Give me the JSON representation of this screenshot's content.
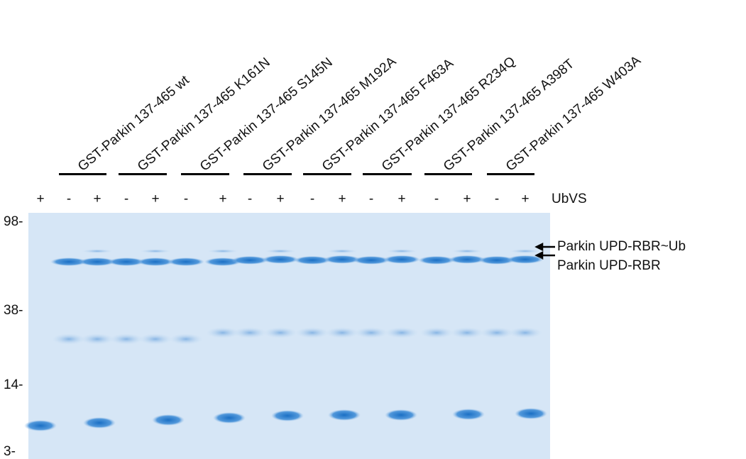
{
  "first_lane_sign": "+",
  "lanes": [
    {
      "label": "GST-Parkin 137-465 wt",
      "signs": [
        "-",
        "+"
      ]
    },
    {
      "label": "GST-Parkin 137-465 K161N",
      "signs": [
        "-",
        "+"
      ]
    },
    {
      "label": "GST-Parkin 137-465 S145N",
      "signs": [
        "-",
        "+"
      ]
    },
    {
      "label": "GST-Parkin 137-465 M192A",
      "signs": [
        "-",
        "+"
      ]
    },
    {
      "label": "GST-Parkin 137-465 F463A",
      "signs": [
        "-",
        "+"
      ]
    },
    {
      "label": "GST-Parkin 137-465 R234Q",
      "signs": [
        "-",
        "+"
      ]
    },
    {
      "label": "GST-Parkin 137-465 A398T",
      "signs": [
        "-",
        "+"
      ]
    },
    {
      "label": "GST-Parkin 137-465 W403A",
      "signs": [
        "-",
        "+"
      ]
    }
  ],
  "reagent": "UbVS",
  "markers": [
    "98-",
    "38-",
    "14-",
    "3-"
  ],
  "band_labels": [
    "Parkin UPD-RBR~Ub",
    "Parkin UPD-RBR"
  ]
}
